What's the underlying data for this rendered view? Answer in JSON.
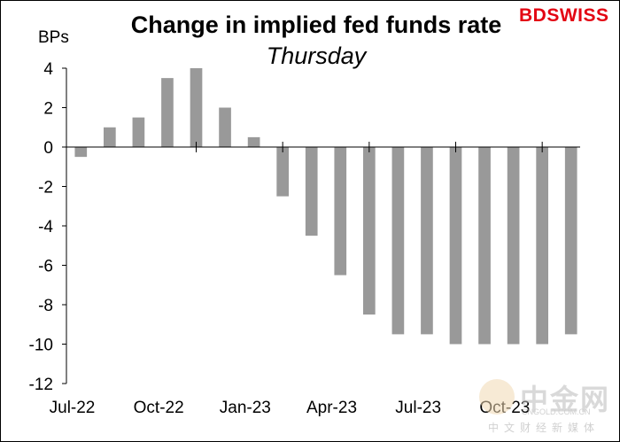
{
  "header": {
    "title": "Change in implied fed funds rate",
    "subtitle": "Thursday"
  },
  "logo": {
    "part1": "BD",
    "part2": "SWISS"
  },
  "watermark": {
    "chinese": "中金网",
    "url": "CNGOLD.COM.CN",
    "sub": "中文财经新媒体"
  },
  "colors": {
    "bar": "#999999",
    "axis": "#000000",
    "brand": "#e30613"
  },
  "chart_data": {
    "type": "bar",
    "title": "Change in implied fed funds rate",
    "subtitle": "Thursday",
    "ylabel": "BPs",
    "xlabel": "",
    "ylim": [
      -12,
      4
    ],
    "yticks": [
      4,
      2,
      0,
      -2,
      -4,
      -6,
      -8,
      -10,
      -12
    ],
    "xtick_labels": [
      "Jul-22",
      "Oct-22",
      "Jan-23",
      "Apr-23",
      "Jul-23",
      "Oct-23"
    ],
    "grid": false,
    "legend": "none",
    "categories": [
      "Jul-22",
      "Aug-22",
      "Sep-22",
      "Oct-22",
      "Nov-22",
      "Dec-22",
      "Jan-23",
      "Feb-23",
      "Mar-23",
      "Apr-23",
      "May-23",
      "Jun-23",
      "Jul-23",
      "Aug-23",
      "Sep-23",
      "Oct-23",
      "Nov-23",
      "Dec-23"
    ],
    "values": [
      -0.5,
      1.0,
      1.5,
      3.5,
      4.0,
      2.0,
      0.5,
      -2.5,
      -4.5,
      -6.5,
      -8.5,
      -9.5,
      -9.5,
      -10.0,
      -10.0,
      -10.0,
      -10.0,
      -9.5
    ]
  }
}
